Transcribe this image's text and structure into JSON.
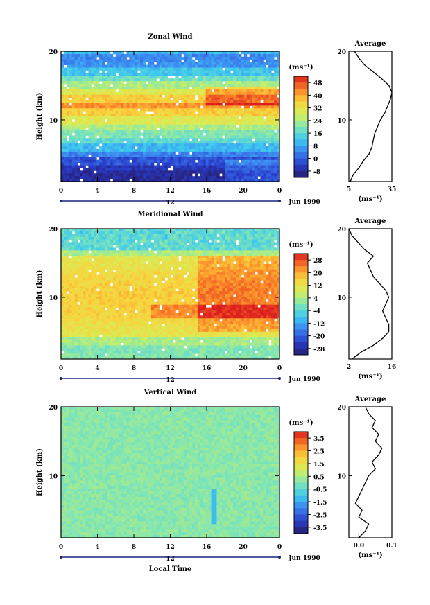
{
  "chart_data": [
    {
      "type": "heatmap",
      "title": "Zonal Wind",
      "ylabel": "Height (km)",
      "xlabel": "",
      "x_ticks": [
        "0",
        "4",
        "8",
        "12",
        "16",
        "20",
        "0"
      ],
      "y_ticks": [
        "10",
        "20"
      ],
      "ylim": [
        1,
        20
      ],
      "xlim": [
        0,
        24
      ],
      "date_label": "12",
      "date_note": "Jun 1990",
      "colorbar": {
        "unit": "(ms⁻¹)",
        "ticks": [
          "48",
          "40",
          "32",
          "24",
          "16",
          "8",
          "0",
          "-8"
        ],
        "min": -12,
        "max": 52
      },
      "grid": {
        "rows_height_km": [
          20,
          19,
          18,
          17,
          16,
          15,
          14,
          13,
          12,
          11,
          10,
          9,
          8,
          7,
          6,
          5,
          4,
          3,
          2,
          1
        ],
        "profile_by_height": [
          10,
          5,
          6,
          12,
          18,
          24,
          30,
          36,
          42,
          36,
          30,
          24,
          20,
          16,
          10,
          4,
          -2,
          -6,
          -8,
          -8
        ]
      },
      "average": {
        "title": "Average",
        "xlabel": "(ms⁻¹)",
        "x_ticks": [
          "5",
          "35"
        ],
        "xlim": [
          5,
          35
        ],
        "y_ticks": [
          "10",
          "20"
        ],
        "height_km": [
          1,
          2,
          3,
          4,
          5,
          6,
          7,
          8,
          9,
          10,
          11,
          12,
          13,
          14,
          15,
          16,
          17,
          18,
          19,
          20
        ],
        "values": [
          6,
          8,
          12,
          15,
          19,
          21,
          22,
          23,
          25,
          27,
          30,
          32,
          34,
          35,
          33,
          28,
          22,
          16,
          12,
          9
        ]
      }
    },
    {
      "type": "heatmap",
      "title": "Meridional Wind",
      "ylabel": "Height (km)",
      "xlabel": "",
      "x_ticks": [
        "0",
        "4",
        "8",
        "12",
        "16",
        "20",
        "0"
      ],
      "y_ticks": [
        "10",
        "20"
      ],
      "ylim": [
        1,
        20
      ],
      "xlim": [
        0,
        24
      ],
      "date_label": "12",
      "date_note": "Jun 1990",
      "colorbar": {
        "unit": "(ms⁻¹)",
        "ticks": [
          "28",
          "20",
          "12",
          "4",
          "-4",
          "-12",
          "-20",
          "-28"
        ],
        "min": -32,
        "max": 32
      },
      "average": {
        "title": "Average",
        "xlabel": "(ms⁻¹)",
        "x_ticks": [
          "2",
          "16"
        ],
        "xlim": [
          2,
          16
        ],
        "y_ticks": [
          "10",
          "20"
        ],
        "height_km": [
          1,
          2,
          3,
          4,
          5,
          6,
          7,
          8,
          9,
          10,
          11,
          12,
          13,
          14,
          15,
          16,
          17,
          18,
          19,
          20
        ],
        "values": [
          3,
          6,
          10,
          13,
          15,
          15,
          14,
          13,
          14,
          15,
          14,
          12,
          10,
          9,
          8,
          10,
          7,
          5,
          3,
          2
        ]
      }
    },
    {
      "type": "heatmap",
      "title": "Vertical Wind",
      "ylabel": "Height (km)",
      "xlabel": "Local Time",
      "x_ticks": [
        "0",
        "4",
        "8",
        "12",
        "16",
        "20",
        "0"
      ],
      "y_ticks": [
        "10",
        "20"
      ],
      "ylim": [
        1,
        20
      ],
      "xlim": [
        0,
        24
      ],
      "date_label": "12",
      "date_note": "Jun 1990",
      "colorbar": {
        "unit": "(ms⁻¹)",
        "ticks": [
          "3.5",
          "2.5",
          "1.5",
          "0.5",
          "-0.5",
          "-1.5",
          "-2.5",
          "-3.5"
        ],
        "min": -4,
        "max": 4
      },
      "average": {
        "title": "Average",
        "xlabel": "(ms⁻¹)",
        "x_ticks": [
          "0.0",
          "0.1"
        ],
        "xlim": [
          -0.03,
          0.1
        ],
        "y_ticks": [
          "10",
          "20"
        ],
        "height_km": [
          1,
          2,
          3,
          4,
          5,
          6,
          7,
          8,
          9,
          10,
          11,
          12,
          13,
          14,
          15,
          16,
          17,
          18,
          19,
          20
        ],
        "values": [
          0.0,
          0.02,
          0.03,
          0.0,
          0.01,
          -0.01,
          0.0,
          0.01,
          0.02,
          0.03,
          0.05,
          0.04,
          0.06,
          0.07,
          0.05,
          0.06,
          0.04,
          0.05,
          0.03,
          0.02
        ]
      }
    }
  ]
}
